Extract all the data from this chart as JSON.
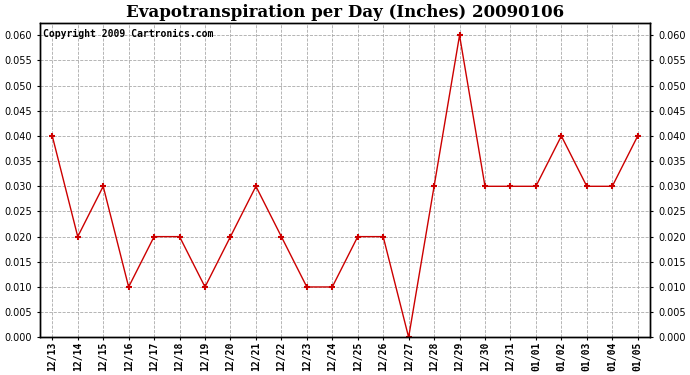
{
  "title": "Evapotranspiration per Day (Inches) 20090106",
  "copyright_text": "Copyright 2009 Cartronics.com",
  "x_labels": [
    "12/13",
    "12/14",
    "12/15",
    "12/16",
    "12/17",
    "12/18",
    "12/19",
    "12/20",
    "12/21",
    "12/22",
    "12/23",
    "12/24",
    "12/25",
    "12/26",
    "12/27",
    "12/28",
    "12/29",
    "12/30",
    "12/31",
    "01/01",
    "01/02",
    "01/03",
    "01/04",
    "01/05"
  ],
  "y_values": [
    0.04,
    0.02,
    0.03,
    0.01,
    0.02,
    0.02,
    0.01,
    0.02,
    0.03,
    0.02,
    0.01,
    0.01,
    0.02,
    0.02,
    0.0,
    0.03,
    0.06,
    0.03,
    0.03,
    0.03,
    0.04,
    0.03,
    0.03,
    0.04
  ],
  "line_color": "#cc0000",
  "marker": "+",
  "marker_color": "#cc0000",
  "ylim": [
    0.0,
    0.0625
  ],
  "yticks": [
    0.0,
    0.005,
    0.01,
    0.015,
    0.02,
    0.025,
    0.03,
    0.035,
    0.04,
    0.045,
    0.05,
    0.055,
    0.06
  ],
  "grid_color": "#aaaaaa",
  "plot_bg_color": "#ffffff",
  "fig_bg_color": "#000000",
  "title_fontsize": 12,
  "copyright_fontsize": 7,
  "tick_fontsize": 7,
  "title_color": "#000000",
  "fig_bg_actual": "#ffffff"
}
